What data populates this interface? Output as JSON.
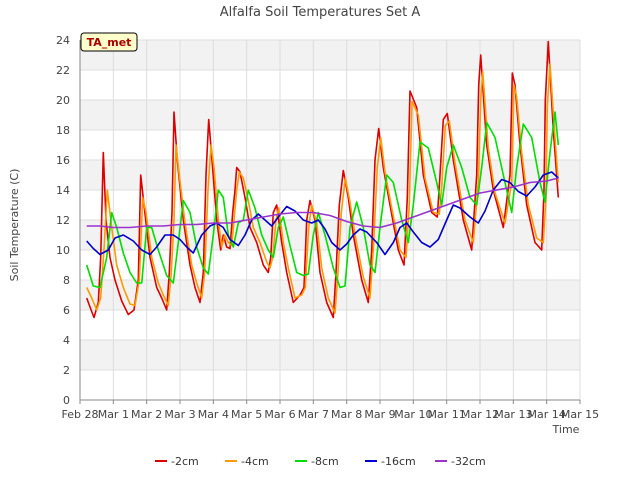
{
  "chart_data": {
    "type": "line",
    "title": "Alfalfa Soil Temperatures Set A",
    "xlabel": "Time",
    "ylabel": "Soil Temperature (C)",
    "station_label": "TA_met",
    "ylim": [
      0,
      24
    ],
    "yticks": [
      0,
      2,
      4,
      6,
      8,
      10,
      12,
      14,
      16,
      18,
      20,
      22,
      24
    ],
    "xlim": [
      0,
      15
    ],
    "xticks": [
      0,
      1,
      2,
      3,
      4,
      5,
      6,
      7,
      8,
      9,
      10,
      11,
      12,
      13,
      14,
      15
    ],
    "xtick_labels": [
      "Feb 28",
      "Mar 1",
      "Mar 2",
      "Mar 3",
      "Mar 4",
      "Mar 5",
      "Mar 6",
      "Mar 7",
      "Mar 8",
      "Mar 9",
      "Mar 10",
      "Mar 11",
      "Mar 12",
      "Mar 13",
      "Mar 14",
      "Mar 15"
    ],
    "grid": true,
    "legend_position": "bottom",
    "series": [
      {
        "name": "-2cm",
        "color": "#dd0000",
        "x": [
          0.2,
          0.3,
          0.42,
          0.55,
          0.62,
          0.7,
          0.78,
          0.9,
          1.05,
          1.25,
          1.45,
          1.62,
          1.75,
          1.82,
          1.92,
          2.1,
          2.3,
          2.45,
          2.6,
          2.68,
          2.76,
          2.82,
          2.92,
          3.1,
          3.3,
          3.45,
          3.6,
          3.7,
          3.78,
          3.86,
          3.96,
          4.1,
          4.22,
          4.3,
          4.4,
          4.5,
          4.58,
          4.65,
          4.7,
          4.8,
          4.95,
          5.1,
          5.3,
          5.5,
          5.65,
          5.72,
          5.8,
          5.9,
          6.05,
          6.2,
          6.4,
          6.6,
          6.72,
          6.8,
          6.9,
          7.05,
          7.2,
          7.4,
          7.6,
          7.68,
          7.78,
          7.9,
          8.05,
          8.2,
          8.45,
          8.65,
          8.75,
          8.85,
          8.96,
          9.1,
          9.3,
          9.55,
          9.72,
          9.82,
          9.9,
          10.1,
          10.3,
          10.55,
          10.72,
          10.8,
          10.9,
          11.02,
          11.2,
          11.5,
          11.75,
          11.9,
          11.96,
          12.02,
          12.2,
          12.4,
          12.7,
          12.9,
          12.97,
          13.05,
          13.2,
          13.4,
          13.65,
          13.85,
          13.92,
          13.96,
          14.05,
          14.2,
          14.35
        ],
        "y": [
          6.8,
          6.2,
          5.5,
          6.5,
          9.5,
          16.5,
          12.0,
          9.5,
          8.0,
          6.6,
          5.7,
          6.0,
          8.0,
          15.0,
          13.0,
          9.5,
          7.5,
          6.8,
          6.0,
          8.5,
          12.5,
          19.2,
          16.0,
          12.0,
          9.0,
          7.5,
          6.5,
          8.5,
          15.0,
          18.7,
          16.0,
          12.0,
          10.0,
          11.0,
          10.2,
          10.1,
          12.5,
          14.0,
          15.5,
          15.2,
          13.5,
          11.5,
          10.5,
          9.0,
          8.5,
          9.5,
          12.5,
          13.0,
          10.5,
          8.5,
          6.5,
          7.0,
          7.5,
          12.0,
          13.3,
          12.0,
          8.5,
          6.5,
          5.5,
          8.5,
          13.0,
          15.3,
          13.5,
          11.0,
          8.0,
          6.5,
          10.0,
          16.0,
          18.1,
          15.5,
          13.0,
          10.0,
          9.0,
          13.5,
          20.6,
          19.5,
          15.0,
          12.5,
          12.2,
          15.0,
          18.7,
          19.1,
          16.0,
          12.0,
          10.0,
          15.0,
          21.0,
          23.0,
          17.0,
          14.0,
          11.5,
          15.0,
          21.8,
          21.0,
          17.0,
          13.0,
          10.5,
          10.0,
          14.0,
          20.0,
          23.9,
          18.0,
          13.5
        ]
      },
      {
        "name": "-4cm",
        "color": "#ff9900",
        "x": [
          0.2,
          0.35,
          0.5,
          0.62,
          0.72,
          0.82,
          0.95,
          1.1,
          1.3,
          1.5,
          1.65,
          1.78,
          1.88,
          1.98,
          2.15,
          2.35,
          2.5,
          2.65,
          2.74,
          2.82,
          2.88,
          2.98,
          3.15,
          3.35,
          3.5,
          3.65,
          3.74,
          3.84,
          3.93,
          4.02,
          4.15,
          4.25,
          4.34,
          4.45,
          4.55,
          4.62,
          4.7,
          4.78,
          4.9,
          5.05,
          5.2,
          5.4,
          5.6,
          5.7,
          5.78,
          5.88,
          5.96,
          6.1,
          6.25,
          6.45,
          6.65,
          6.76,
          6.86,
          6.95,
          7.1,
          7.25,
          7.45,
          7.65,
          7.74,
          7.84,
          7.96,
          8.1,
          8.25,
          8.5,
          8.7,
          8.8,
          8.92,
          9.02,
          9.15,
          9.35,
          9.6,
          9.78,
          9.88,
          9.96,
          10.15,
          10.35,
          10.6,
          10.78,
          10.86,
          10.96,
          11.08,
          11.25,
          11.55,
          11.8,
          11.95,
          12.02,
          12.08,
          12.25,
          12.45,
          12.75,
          12.95,
          13.02,
          13.1,
          13.25,
          13.45,
          13.7,
          13.9,
          13.98,
          14.02,
          14.1,
          14.25,
          14.35
        ],
        "y": [
          7.5,
          6.8,
          6.0,
          6.8,
          10.0,
          14.0,
          11.5,
          9.0,
          7.5,
          6.4,
          6.3,
          8.0,
          13.5,
          12.5,
          9.5,
          7.8,
          7.0,
          6.3,
          8.5,
          12.0,
          17.0,
          15.0,
          11.8,
          9.0,
          7.8,
          6.8,
          8.5,
          14.0,
          17.0,
          15.5,
          12.0,
          10.2,
          11.0,
          10.5,
          10.3,
          12.0,
          14.0,
          15.2,
          14.8,
          13.3,
          11.5,
          10.5,
          9.2,
          8.8,
          9.5,
          12.0,
          12.8,
          10.5,
          8.8,
          6.8,
          7.0,
          7.5,
          11.5,
          13.0,
          11.8,
          8.8,
          6.8,
          5.8,
          8.5,
          12.5,
          14.8,
          13.2,
          11.0,
          8.2,
          6.8,
          10.0,
          15.5,
          17.5,
          15.2,
          12.8,
          10.0,
          9.5,
          13.0,
          19.9,
          19.0,
          14.8,
          12.5,
          12.4,
          14.5,
          18.3,
          18.6,
          15.8,
          12.0,
          10.5,
          14.5,
          20.0,
          21.9,
          16.8,
          13.8,
          11.8,
          14.5,
          21.0,
          20.2,
          16.5,
          13.0,
          10.8,
          10.5,
          13.5,
          19.5,
          22.4,
          17.5,
          14.5
        ]
      },
      {
        "name": "-8cm",
        "color": "#00dd00",
        "x": [
          0.2,
          0.4,
          0.6,
          0.8,
          0.95,
          1.1,
          1.3,
          1.5,
          1.7,
          1.85,
          2.0,
          2.15,
          2.35,
          2.6,
          2.8,
          2.95,
          3.1,
          3.3,
          3.5,
          3.7,
          3.85,
          4.0,
          4.15,
          4.3,
          4.45,
          4.6,
          4.75,
          4.9,
          5.05,
          5.25,
          5.45,
          5.65,
          5.8,
          5.95,
          6.1,
          6.3,
          6.5,
          6.7,
          6.85,
          7.0,
          7.15,
          7.35,
          7.6,
          7.8,
          7.95,
          8.1,
          8.3,
          8.5,
          8.7,
          8.85,
          9.0,
          9.2,
          9.4,
          9.65,
          9.85,
          10.0,
          10.2,
          10.45,
          10.7,
          10.85,
          11.0,
          11.2,
          11.45,
          11.7,
          11.9,
          12.05,
          12.2,
          12.45,
          12.75,
          12.95,
          13.1,
          13.3,
          13.55,
          13.8,
          13.95,
          14.1,
          14.25,
          14.35
        ],
        "y": [
          9.0,
          7.6,
          7.5,
          9.5,
          12.5,
          11.5,
          9.8,
          8.5,
          7.8,
          7.8,
          11.5,
          11.5,
          10.0,
          8.3,
          7.8,
          10.5,
          13.3,
          12.5,
          10.2,
          8.8,
          8.4,
          11.0,
          14.0,
          13.5,
          11.0,
          10.2,
          11.8,
          12.0,
          14.0,
          12.8,
          11.0,
          10.0,
          9.5,
          11.5,
          12.2,
          10.3,
          8.5,
          8.3,
          8.4,
          11.0,
          12.5,
          11.0,
          8.8,
          7.5,
          7.6,
          11.5,
          13.2,
          11.5,
          9.0,
          8.5,
          11.5,
          15.0,
          14.5,
          12.0,
          10.5,
          13.0,
          17.2,
          16.8,
          14.5,
          13.0,
          15.5,
          17.0,
          15.5,
          13.5,
          13.0,
          15.5,
          18.5,
          17.5,
          14.5,
          12.5,
          15.5,
          18.4,
          17.5,
          14.5,
          13.2,
          16.5,
          19.2,
          17.0
        ]
      },
      {
        "name": "-16cm",
        "color": "#0000cc",
        "x": [
          0.2,
          0.4,
          0.6,
          0.85,
          1.05,
          1.3,
          1.6,
          1.85,
          2.1,
          2.3,
          2.55,
          2.8,
          3.0,
          3.2,
          3.4,
          3.65,
          3.9,
          4.1,
          4.3,
          4.5,
          4.75,
          4.95,
          5.15,
          5.35,
          5.55,
          5.75,
          5.95,
          6.2,
          6.45,
          6.7,
          6.95,
          7.15,
          7.35,
          7.55,
          7.8,
          8.0,
          8.2,
          8.4,
          8.6,
          8.9,
          9.15,
          9.4,
          9.6,
          9.8,
          10.0,
          10.25,
          10.5,
          10.75,
          11.0,
          11.2,
          11.4,
          11.7,
          11.95,
          12.15,
          12.4,
          12.65,
          12.9,
          13.15,
          13.4,
          13.65,
          13.9,
          14.15,
          14.35
        ],
        "y": [
          10.6,
          10.1,
          9.7,
          10.0,
          10.8,
          11.0,
          10.6,
          10.0,
          9.7,
          10.2,
          11.0,
          11.0,
          10.7,
          10.2,
          9.8,
          11.0,
          11.6,
          11.8,
          11.5,
          10.7,
          10.3,
          11.0,
          12.0,
          12.4,
          12.0,
          11.6,
          12.2,
          12.9,
          12.6,
          12.0,
          11.8,
          12.0,
          11.4,
          10.5,
          10.0,
          10.4,
          11.0,
          11.4,
          11.2,
          10.5,
          9.7,
          10.5,
          11.5,
          11.8,
          11.2,
          10.5,
          10.2,
          10.7,
          12.0,
          13.0,
          12.8,
          12.2,
          11.8,
          12.6,
          14.0,
          14.7,
          14.5,
          13.9,
          13.6,
          14.2,
          15.0,
          15.2,
          14.8
        ]
      },
      {
        "name": "-32cm",
        "color": "#9933cc",
        "x": [
          0.2,
          0.6,
          1.0,
          1.5,
          2.0,
          2.5,
          3.0,
          3.5,
          4.0,
          4.5,
          5.0,
          5.5,
          6.0,
          6.5,
          7.0,
          7.5,
          8.0,
          8.5,
          9.0,
          9.5,
          10.0,
          10.5,
          11.0,
          11.5,
          12.0,
          12.5,
          13.0,
          13.5,
          14.0,
          14.35
        ],
        "y": [
          11.6,
          11.6,
          11.5,
          11.5,
          11.6,
          11.6,
          11.7,
          11.7,
          11.8,
          11.8,
          12.0,
          12.2,
          12.4,
          12.5,
          12.5,
          12.3,
          11.9,
          11.6,
          11.5,
          11.8,
          12.2,
          12.6,
          13.0,
          13.4,
          13.8,
          14.0,
          14.2,
          14.5,
          14.6,
          14.8
        ]
      }
    ]
  }
}
